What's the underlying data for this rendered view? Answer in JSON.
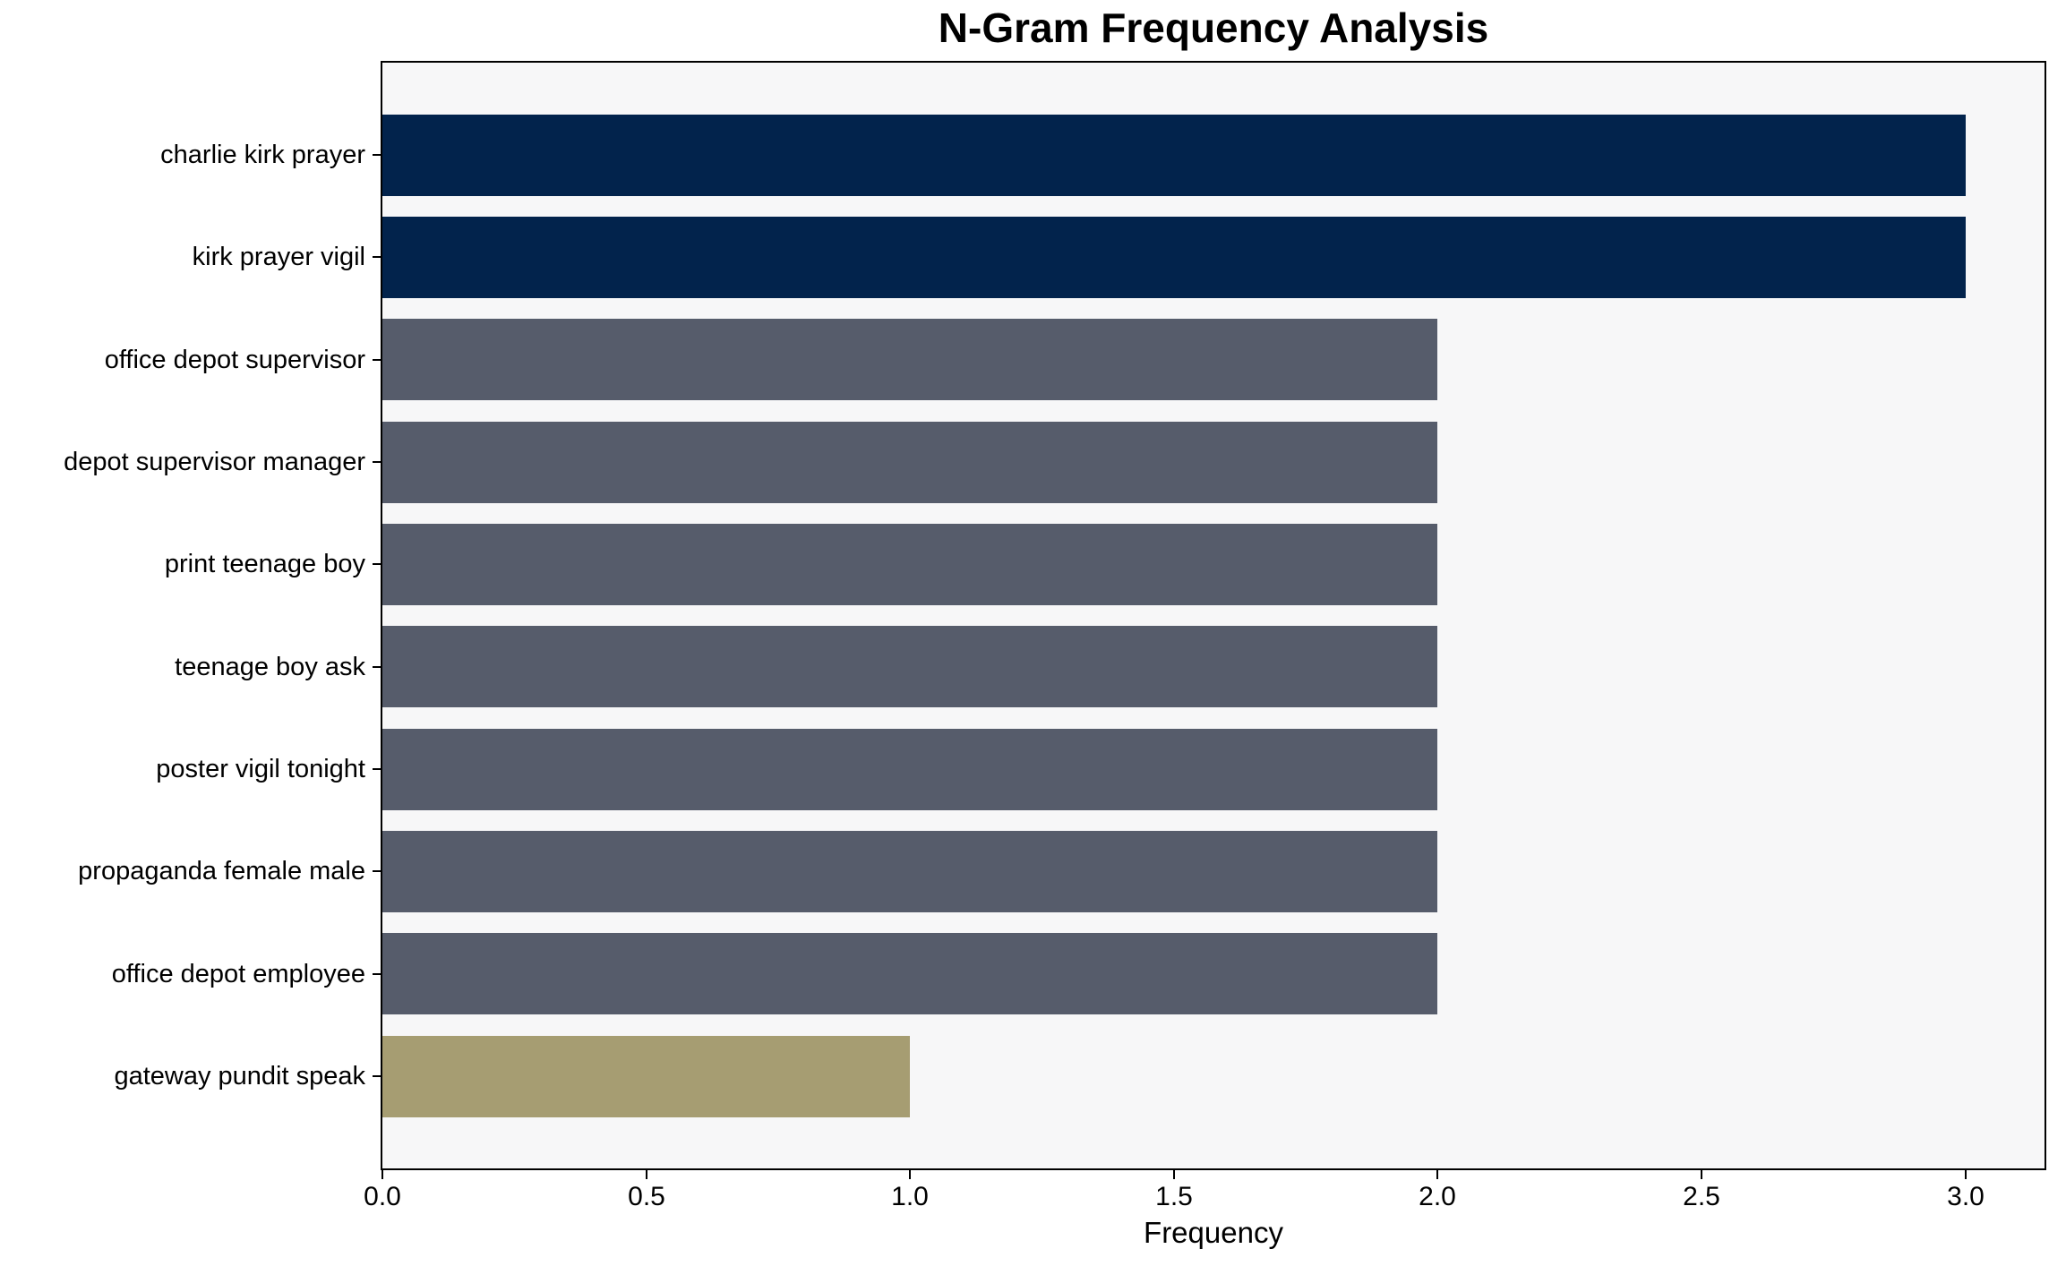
{
  "chart_data": {
    "type": "bar",
    "orientation": "horizontal",
    "title": "N-Gram Frequency Analysis",
    "xlabel": "Frequency",
    "ylabel": "",
    "categories": [
      "charlie kirk prayer",
      "kirk prayer vigil",
      "office depot supervisor",
      "depot supervisor manager",
      "print teenage boy",
      "teenage boy ask",
      "poster vigil tonight",
      "propaganda female male",
      "office depot employee",
      "gateway pundit speak"
    ],
    "values": [
      3,
      3,
      2,
      2,
      2,
      2,
      2,
      2,
      2,
      1
    ],
    "bar_colors": [
      "#02234C",
      "#02234C",
      "#565C6B",
      "#565C6B",
      "#565C6B",
      "#565C6B",
      "#565C6B",
      "#565C6B",
      "#565C6B",
      "#A69D72"
    ],
    "xlim": [
      0,
      3.15
    ],
    "xticks": [
      0,
      0.5,
      1,
      1.5,
      2,
      2.5,
      3
    ],
    "xtick_labels": [
      "0.0",
      "0.5",
      "1.0",
      "1.5",
      "2.0",
      "2.5",
      "3.0"
    ],
    "grid": false,
    "legend": null,
    "colors": {
      "top_bar": "#02234C",
      "mid_bar": "#565C6B",
      "low_bar": "#A69D72",
      "plot_background": "#F7F7F8",
      "spine": "#000000",
      "text": "#000000",
      "page_background": "#FFFFFF"
    }
  }
}
